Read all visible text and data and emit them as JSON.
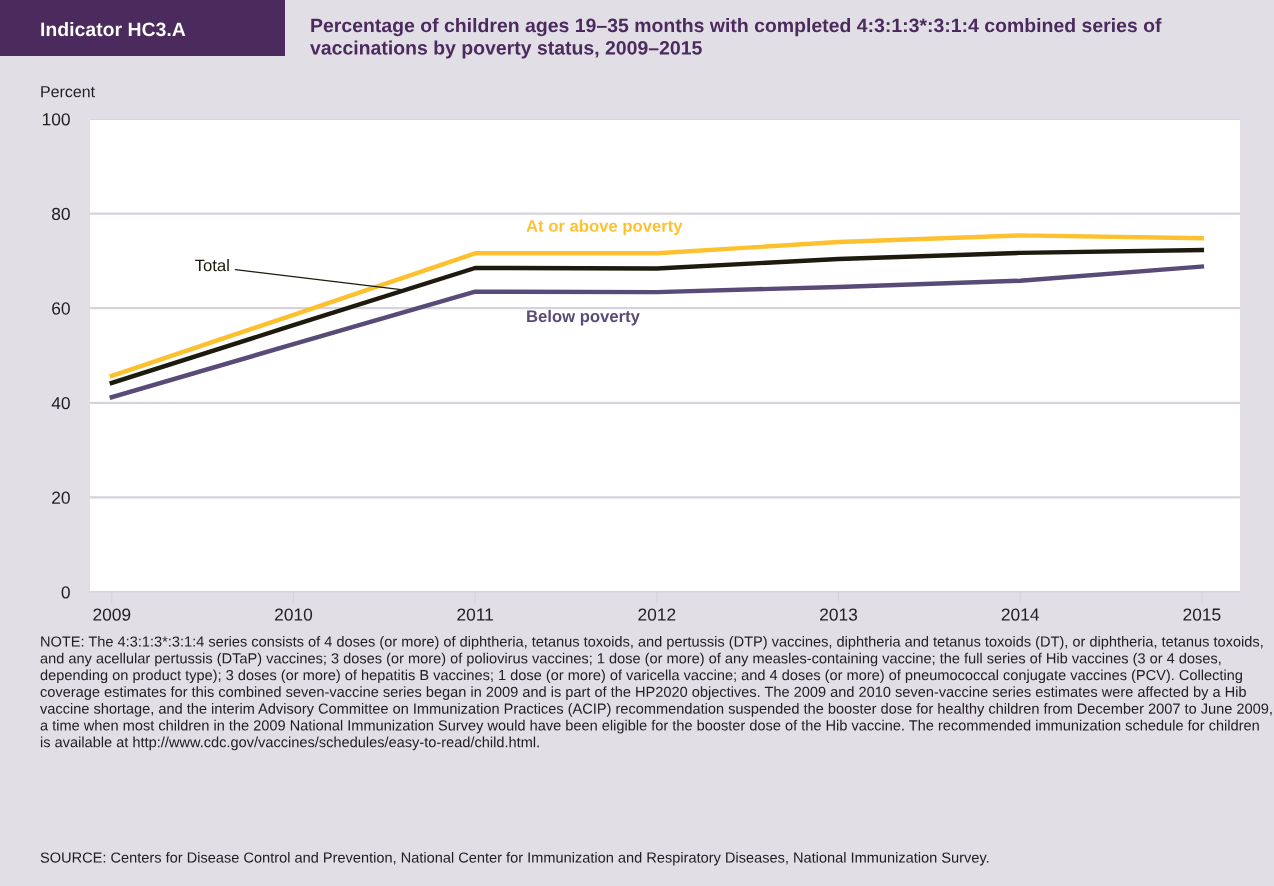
{
  "chart_data": {
    "type": "line",
    "title": "Percentage of children ages 19–35 months with completed 4:3:1:3*:3:1:4 combined series of vaccinations by poverty status, 2009–2015",
    "ylabel": "Percent",
    "x": [
      2009,
      2010,
      2011,
      2012,
      2013,
      2014,
      2015
    ],
    "series": [
      {
        "name": "At or above poverty",
        "color": "#fdc130",
        "values": [
          45.7,
          58.6,
          71.6,
          71.6,
          74.0,
          75.4,
          74.8
        ]
      },
      {
        "name": "Total",
        "color": "#1e1a0e",
        "values": [
          44.2,
          56.4,
          68.5,
          68.4,
          70.4,
          71.7,
          72.3
        ]
      },
      {
        "name": "Below poverty",
        "color": "#5a4a78",
        "values": [
          41.2,
          52.4,
          63.5,
          63.4,
          64.5,
          65.8,
          68.8
        ]
      }
    ],
    "xlim": [
      2008.88,
      2015.21
    ],
    "xticks": [
      2009,
      2010,
      2011,
      2012,
      2013,
      2014,
      2015
    ],
    "ylim": [
      0,
      100
    ],
    "yticks": [
      0,
      20,
      40,
      60,
      80,
      100
    ],
    "grid": "y",
    "legend": false,
    "marker": "none",
    "line_style": "solid",
    "annotations": [
      "Indicator HC3.A",
      "NOTE: The 4:3:1:3*:3:1:4 series consists of 4 doses (or more) of diphtheria, tetanus toxoids, and pertussis (DTP) vaccines, diphtheria and tetanus toxoids (DT), or diphtheria, tetanus toxoids, and any acellular pertussis (DTaP) vaccines; 3 doses (or more) of poliovirus vaccines; 1 dose (or more) of any measles-containing vaccine; the full series of Hib vaccines (3 or 4 doses, depending on product type); 3 doses (or more) of hepatitis B vaccines; 1 dose (or more) of varicella vaccine; and 4 doses (or more) of pneumococcal conjugate vaccines (PCV). Collecting coverage estimates for this combined seven-vaccine series began in 2009 and is part of the HP2020 objectives. The 2009 and 2010 seven-vaccine series estimates were affected by a Hib vaccine shortage, and the interim Advisory Committee on Immunization Practices (ACIP) recommendation suspended the booster dose for healthy children from December 2007 to June 2009, a time when most children in the 2009 National Immunization Survey would have been eligible for the booster dose of the Hib vaccine. The recommended immunization schedule for children is available at http://www.cdc.gov/vaccines/schedules/easy-to-read/child.html.",
      "SOURCE: Centers for Disease Control and Prevention, National Center for Immunization and Respiratory Diseases, National Immunization Survey."
    ]
  }
}
